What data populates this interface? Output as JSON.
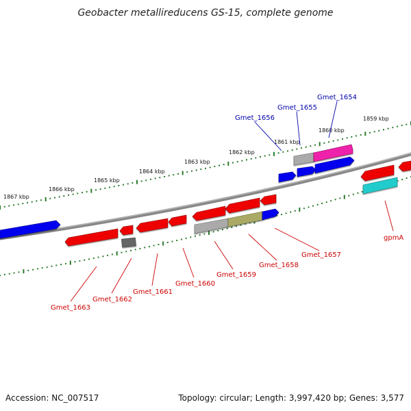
{
  "title": "Geobacter metallireducens GS-15, complete genome",
  "footer": {
    "accession": "Accession: NC_007517",
    "summary": "Topology: circular; Length: 3,997,420 bp; Genes: 3,577"
  },
  "colors": {
    "label_upper": "#0000aa",
    "label_lower": "#cc0000",
    "tick_major": "#2a7a2a",
    "tick_minor": "#2a7a2a",
    "backbone": "#888888"
  },
  "scale_labels": [
    "1867 kbp",
    "1866 kbp",
    "1865 kbp",
    "1864 kbp",
    "1863 kbp",
    "1862 kbp",
    "1861 kbp",
    "1860 kbp",
    "1859 kbp"
  ],
  "genes": [
    {
      "label": "",
      "strand": "plus",
      "color": "#0000ee",
      "direction": "right"
    },
    {
      "label": "",
      "strand": "plus",
      "color": "#0000ee",
      "direction": "right"
    },
    {
      "label": "",
      "strand": "plus",
      "color": "#0000ee",
      "direction": "right"
    },
    {
      "label": "Gmet_1656",
      "strand": "plus",
      "color": "#0000ee",
      "direction": "right"
    },
    {
      "label": "Gmet_1655",
      "strand": "plus",
      "color": "#aaaaaa",
      "direction": "right"
    },
    {
      "label": "Gmet_1654",
      "strand": "plus",
      "color": "#ee22aa",
      "direction": "right"
    },
    {
      "label": "Gmet_1663",
      "strand": "minus",
      "color": "#ee0000",
      "direction": "left"
    },
    {
      "label": "Gmet_1662",
      "strand": "minus",
      "color": "#ee0000",
      "direction": "left"
    },
    {
      "label": "",
      "strand": "minus",
      "color": "#666666",
      "direction": "none"
    },
    {
      "label": "Gmet_1661",
      "strand": "minus",
      "color": "#ee0000",
      "direction": "left"
    },
    {
      "label": "Gmet_1660",
      "strand": "minus",
      "color": "#ee0000",
      "direction": "left"
    },
    {
      "label": "",
      "strand": "minus",
      "color": "#ee0000",
      "direction": "left"
    },
    {
      "label": "",
      "strand": "minus",
      "color": "#ee0000",
      "direction": "left"
    },
    {
      "label": "",
      "strand": "minus",
      "color": "#ee0000",
      "direction": "left"
    },
    {
      "label": "Gmet_1659",
      "strand": "minus",
      "color": "#aaaaaa",
      "direction": "none"
    },
    {
      "label": "Gmet_1658",
      "strand": "minus",
      "color": "#aaaa66",
      "direction": "none"
    },
    {
      "label": "Gmet_1657",
      "strand": "minus",
      "color": "#0000ee",
      "direction": "right"
    },
    {
      "label": "",
      "strand": "minus",
      "color": "#ee0000",
      "direction": "left"
    },
    {
      "label": "",
      "strand": "minus",
      "color": "#ee0000",
      "direction": "left"
    },
    {
      "label": "gpmA",
      "strand": "minus",
      "color": "#22cccc",
      "direction": "none"
    }
  ]
}
